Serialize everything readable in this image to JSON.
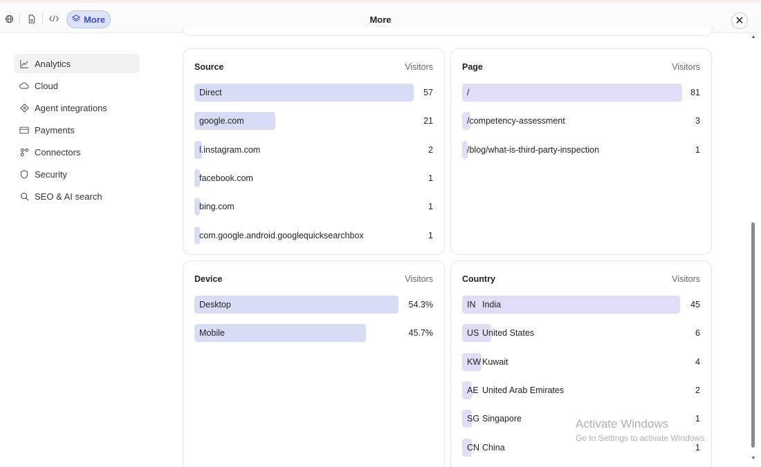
{
  "header": {
    "title": "More",
    "more_label": "More",
    "tools": [
      "globe-icon",
      "file-icon",
      "code-icon"
    ]
  },
  "sidebar": {
    "items": [
      {
        "label": "Analytics",
        "icon": "chart-line-icon",
        "active": true
      },
      {
        "label": "Cloud",
        "icon": "cloud-icon"
      },
      {
        "label": "Agent integrations",
        "icon": "diamond-icon"
      },
      {
        "label": "Payments",
        "icon": "credit-card-icon"
      },
      {
        "label": "Connectors",
        "icon": "connector-icon"
      },
      {
        "label": "Security",
        "icon": "shield-icon"
      },
      {
        "label": "SEO & AI search",
        "icon": "search-icon"
      }
    ]
  },
  "source": {
    "title": "Source",
    "column": "Visitors",
    "color": "#d8ddf5",
    "rows": [
      {
        "label": "Direct",
        "value": "57",
        "fraction": 1.0
      },
      {
        "label": "google.com",
        "value": "21",
        "fraction": 0.37
      },
      {
        "label": "l.instagram.com",
        "value": "2",
        "fraction": 0.035
      },
      {
        "label": "facebook.com",
        "value": "1",
        "fraction": 0.018
      },
      {
        "label": "bing.com",
        "value": "1",
        "fraction": 0.018
      },
      {
        "label": "com.google.android.googlequicksearchbox",
        "value": "1",
        "fraction": 0.018
      }
    ]
  },
  "page": {
    "title": "Page",
    "column": "Visitors",
    "color": "#e2dcf7",
    "rows": [
      {
        "label": "/",
        "value": "81",
        "fraction": 1.0
      },
      {
        "label": "/competency-assessment",
        "value": "3",
        "fraction": 0.037
      },
      {
        "label": "/blog/what-is-third-party-inspection",
        "value": "1",
        "fraction": 0.012
      }
    ]
  },
  "device": {
    "title": "Device",
    "column": "Visitors",
    "color": "#d8ddf5",
    "rows": [
      {
        "label": "Desktop",
        "value": "54.3%",
        "fraction": 1.0
      },
      {
        "label": "Mobile",
        "value": "45.7%",
        "fraction": 0.84
      }
    ]
  },
  "country": {
    "title": "Country",
    "column": "Visitors",
    "color": "#e2dcf7",
    "rows": [
      {
        "code": "IN",
        "label": "India",
        "value": "45",
        "fraction": 1.0
      },
      {
        "code": "US",
        "label": "United States",
        "value": "6",
        "fraction": 0.133
      },
      {
        "code": "KW",
        "label": "Kuwait",
        "value": "4",
        "fraction": 0.089
      },
      {
        "code": "AE",
        "label": "United Arab Emirates",
        "value": "2",
        "fraction": 0.044
      },
      {
        "code": "SG",
        "label": "Singapore",
        "value": "1",
        "fraction": 0.022
      },
      {
        "code": "CN",
        "label": "China",
        "value": "1",
        "fraction": 0.022
      }
    ]
  },
  "watermark": {
    "line1": "Activate Windows",
    "line2": "Go to Settings to activate Windows."
  }
}
